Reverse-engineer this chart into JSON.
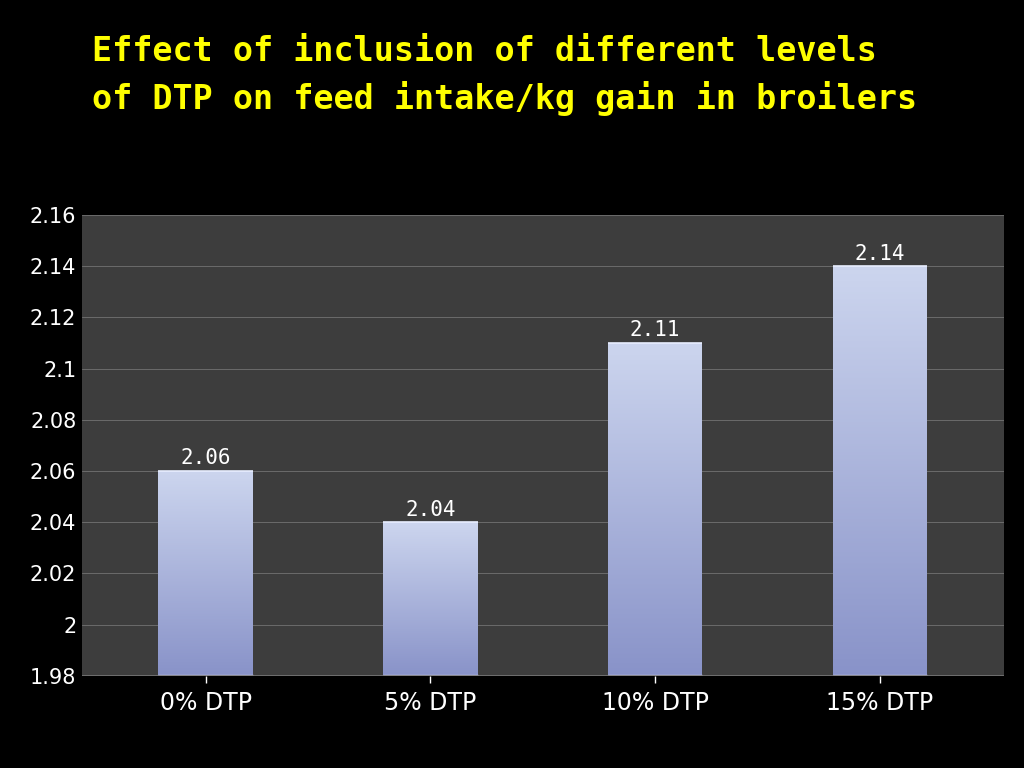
{
  "title_line1": "Effect of inclusion of different levels",
  "title_line2": "of DTP on feed intake/kg gain in broilers",
  "categories": [
    "0% DTP",
    "5% DTP",
    "10% DTP",
    "15% DTP"
  ],
  "values": [
    2.06,
    2.04,
    2.11,
    2.14
  ],
  "ylim": [
    1.98,
    2.16
  ],
  "yticks": [
    1.98,
    2.0,
    2.02,
    2.04,
    2.06,
    2.08,
    2.1,
    2.12,
    2.14,
    2.16
  ],
  "ytick_labels": [
    "1.98",
    "2",
    "2.02",
    "2.04",
    "2.06",
    "2.08",
    "2.1",
    "2.12",
    "2.14",
    "2.16"
  ],
  "background_color": "#000000",
  "plot_bg_color": "#3d3d3d",
  "title_color": "#ffff00",
  "bar_top_color": "#ccd5ee",
  "bar_bottom_color": "#8892c8",
  "tick_color": "#ffffff",
  "grid_color": "#888888",
  "value_label_color": "#ffffff",
  "title_fontsize": 24,
  "tick_fontsize": 15,
  "value_fontsize": 15,
  "xlabel_fontsize": 17,
  "bar_width": 0.42
}
